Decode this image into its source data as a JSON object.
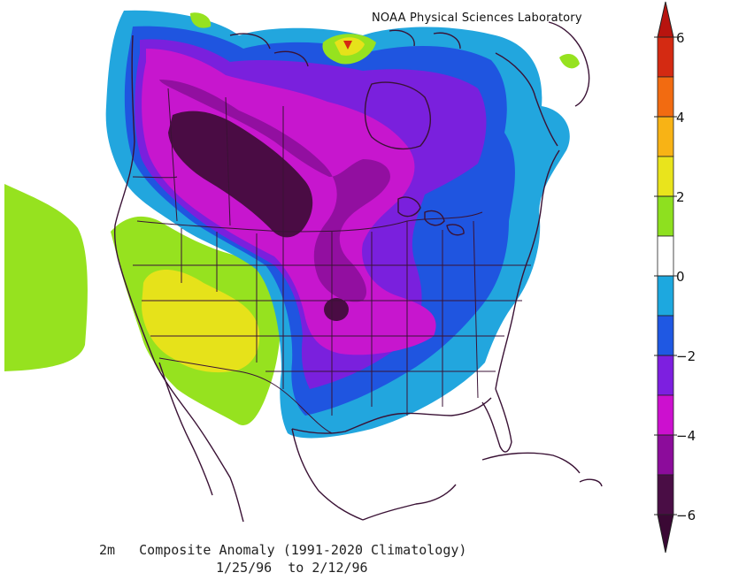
{
  "credit": "NOAA Physical Sciences Laboratory",
  "caption": {
    "line1": "2m   Composite Anomaly (1991-2020 Climatology)",
    "line2": "1/25/96  to 2/12/96"
  },
  "colorbar": {
    "labels": [
      "6",
      "4",
      "2",
      "0",
      "−2",
      "−4",
      "−6"
    ],
    "colors_top_to_bottom": [
      "#d42a12",
      "#f26b11",
      "#f8b315",
      "#e9e41c",
      "#8ee01f",
      "#ffffff",
      "#1da8df",
      "#1f58e3",
      "#7d1fe0",
      "#cc10cf",
      "#8c0c9b",
      "#4a0d45"
    ]
  },
  "palette": {
    "light_green": "#96e21f",
    "yellow": "#e6e21a",
    "light_blue": "#22a6de",
    "blue": "#1f55e0",
    "violet": "#7a20dd",
    "magenta": "#c716ce",
    "purple": "#920fa0",
    "dark_purple": "#4a0c44",
    "coast": "#3a1235"
  }
}
